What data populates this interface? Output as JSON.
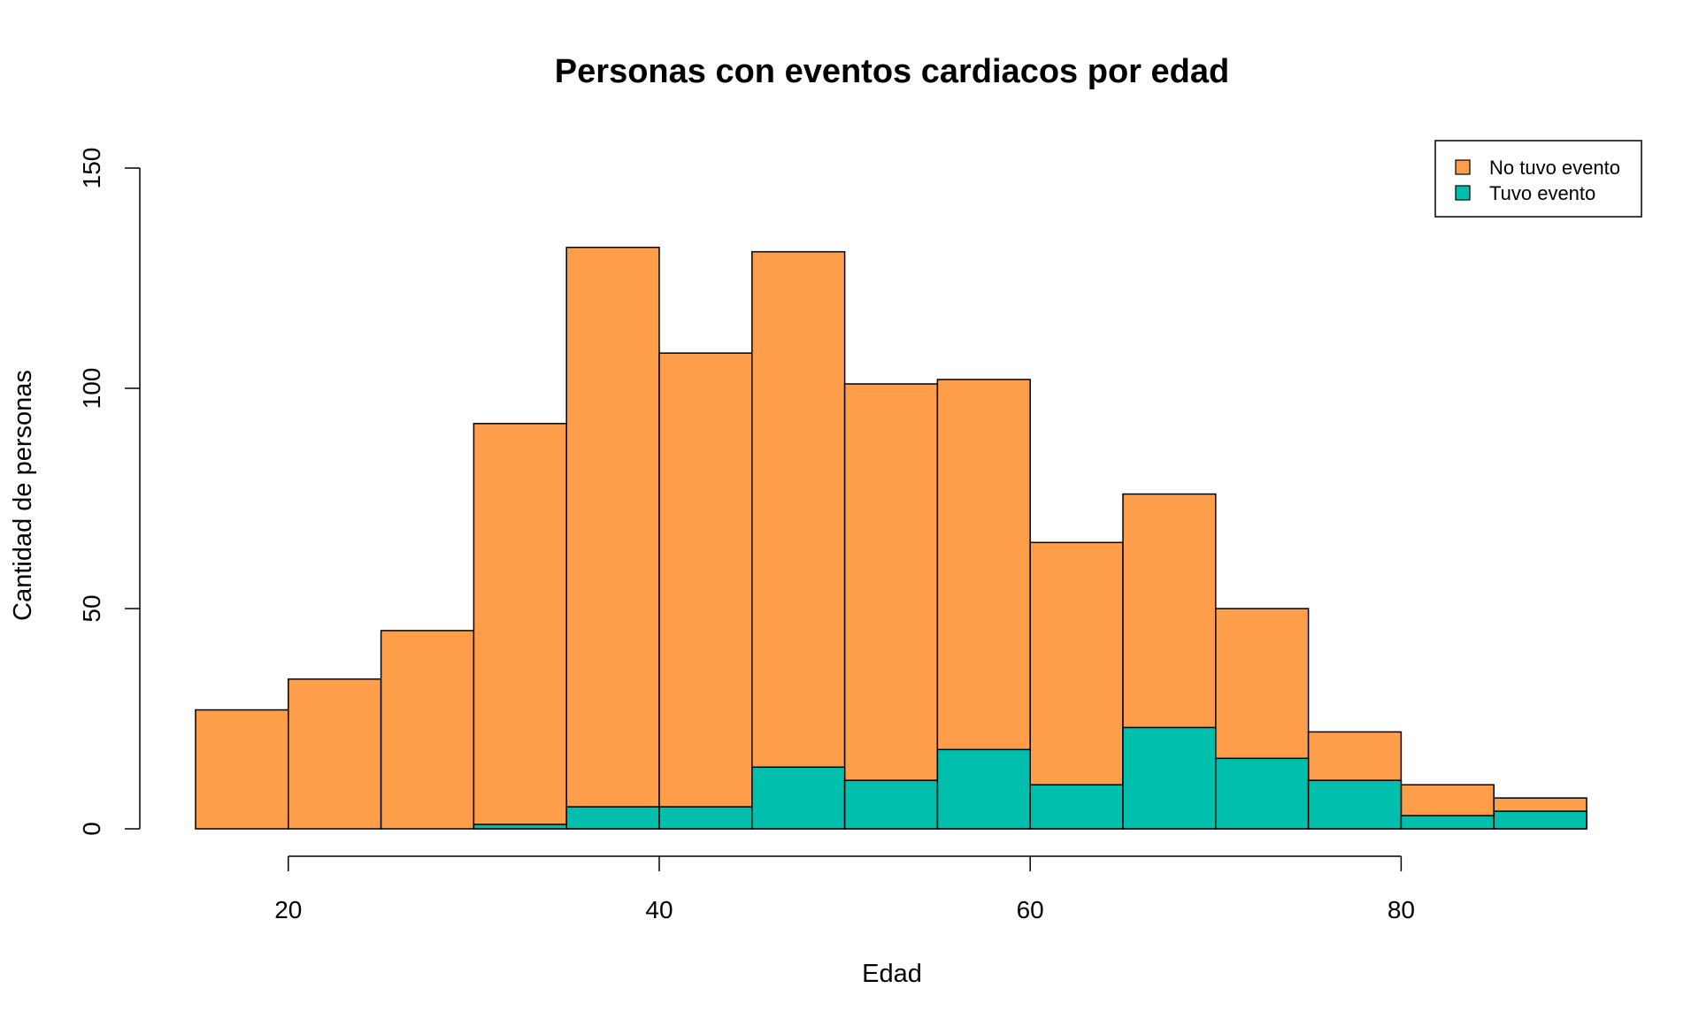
{
  "chart_data": {
    "type": "bar",
    "title": "Personas con eventos cardiacos por edad",
    "xlabel": "Edad",
    "ylabel": "Cantidad de personas",
    "bin_edges": [
      15,
      20,
      25,
      30,
      35,
      40,
      45,
      50,
      55,
      60,
      65,
      70,
      75,
      80,
      85,
      90
    ],
    "series": [
      {
        "name": "No tuvo evento",
        "color": "#FF9E4A",
        "values": [
          27,
          34,
          45,
          92,
          132,
          108,
          131,
          101,
          102,
          65,
          76,
          50,
          22,
          10,
          7
        ]
      },
      {
        "name": "Tuvo evento",
        "color": "#00BFAD",
        "values": [
          0,
          0,
          0,
          1,
          5,
          5,
          14,
          11,
          18,
          10,
          23,
          16,
          11,
          3,
          4
        ]
      }
    ],
    "stacking": "overlaid",
    "xticks": [
      20,
      40,
      60,
      80
    ],
    "yticks": [
      0,
      50,
      100,
      150
    ],
    "xlim": [
      15,
      90
    ],
    "ylim": [
      0,
      150
    ],
    "legend_position": "top-right",
    "grid": false
  }
}
